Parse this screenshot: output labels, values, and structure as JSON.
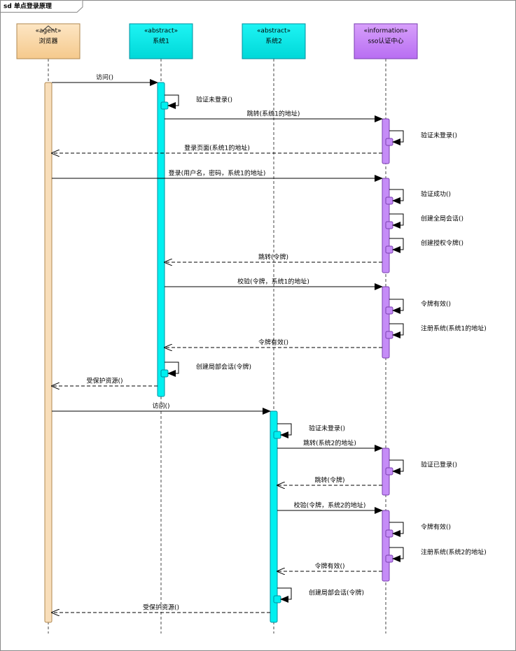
{
  "frame": {
    "title": "sd 单点登录原理"
  },
  "participants": [
    {
      "stereotype": "«agent»",
      "name": "浏览器"
    },
    {
      "stereotype": "«abstract»",
      "name": "系统1"
    },
    {
      "stereotype": "«abstract»",
      "name": "系统2"
    },
    {
      "stereotype": "«information»",
      "name": "sso认证中心"
    }
  ],
  "messages": [
    {
      "label": "访问()"
    },
    {
      "label": "验证未登录()"
    },
    {
      "label": "跳转(系统1的地址)"
    },
    {
      "label": "验证未登录()"
    },
    {
      "label": "登录页面(系统1的地址)"
    },
    {
      "label": "登录(用户名，密码，系统1的地址)"
    },
    {
      "label": "验证成功()"
    },
    {
      "label": "创建全局会话()"
    },
    {
      "label": "创建授权令牌()"
    },
    {
      "label": "跳转(令牌)"
    },
    {
      "label": "校验(令牌，系统1的地址)"
    },
    {
      "label": "令牌有效()"
    },
    {
      "label": "注册系统(系统1的地址)"
    },
    {
      "label": "令牌有效()"
    },
    {
      "label": "创建局部会话(令牌)"
    },
    {
      "label": "受保护资源()"
    },
    {
      "label": "访问()"
    },
    {
      "label": "验证未登录()"
    },
    {
      "label": "跳转(系统2的地址)"
    },
    {
      "label": "验证已登录()"
    },
    {
      "label": "跳转(令牌)"
    },
    {
      "label": "校验(令牌，系统2的地址)"
    },
    {
      "label": "令牌有效()"
    },
    {
      "label": "注册系统(系统2的地址)"
    },
    {
      "label": "令牌有效()"
    },
    {
      "label": "创建局部会话(令牌)"
    },
    {
      "label": "受保护资源()"
    }
  ]
}
